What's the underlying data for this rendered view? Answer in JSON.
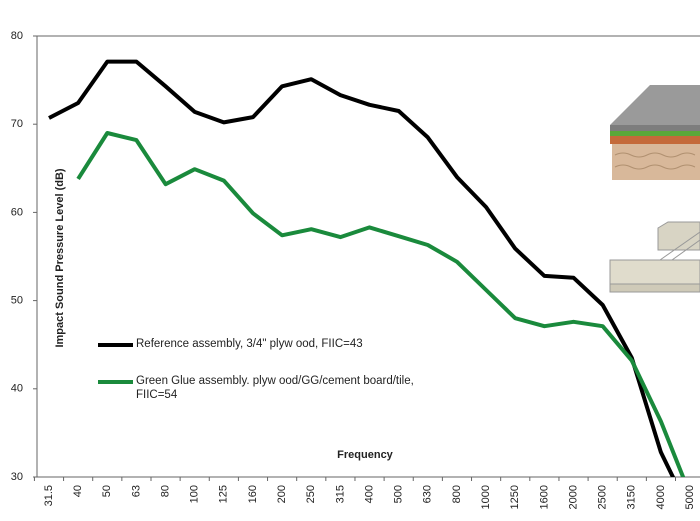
{
  "chart_data": {
    "type": "line",
    "x_label": "Frequency",
    "y_label": "Impact Sound Pressure Level (dB)",
    "categories": [
      "31.5",
      "40",
      "50",
      "63",
      "80",
      "100",
      "125",
      "160",
      "200",
      "250",
      "315",
      "400",
      "500",
      "630",
      "800",
      "1000",
      "1250",
      "1600",
      "2000",
      "2500",
      "3150",
      "4000",
      "5000"
    ],
    "series": [
      {
        "name": "Reference assembly, 3/4\" plyw ood, FIIC=43",
        "color": "#000000",
        "values": [
          70.7,
          72.4,
          77.1,
          77.1,
          74.3,
          71.4,
          70.2,
          70.8,
          74.3,
          75.1,
          73.3,
          72.2,
          71.5,
          68.5,
          64.0,
          60.6,
          55.9,
          52.8,
          52.6,
          49.5,
          43.5,
          32.8,
          26
        ]
      },
      {
        "name": "Green Glue assembly.  plyw ood/GG/cement board/tile, FIIC=54",
        "color": "#1a8a3c",
        "values": [
          null,
          63.8,
          69.0,
          68.2,
          63.2,
          64.9,
          63.6,
          59.9,
          57.4,
          58.1,
          57.2,
          58.3,
          57.3,
          56.3,
          54.4,
          51.2,
          48.0,
          47.1,
          47.6,
          47.1,
          43.2,
          36.3,
          28
        ]
      }
    ],
    "ylim": [
      30,
      80
    ],
    "yticks": [
      30,
      40,
      50,
      60,
      70,
      80
    ],
    "grid": false
  }
}
